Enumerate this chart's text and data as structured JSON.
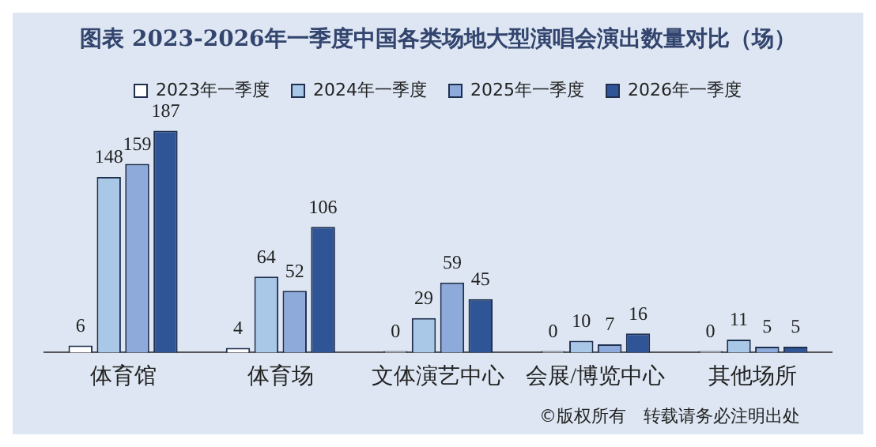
{
  "chart_data": {
    "type": "bar",
    "title": "图表 2023-2026年一季度中国各类场地大型演唱会演出数量对比（场）",
    "categories": [
      "体育馆",
      "体育场",
      "文体演艺中心",
      "会展/博览中心",
      "其他场所"
    ],
    "series": [
      {
        "name": "2023年一季度",
        "color": "#ffffff",
        "values": [
          6,
          4,
          0,
          0,
          0
        ]
      },
      {
        "name": "2024年一季度",
        "color": "#a9c8e8",
        "values": [
          148,
          64,
          29,
          10,
          11
        ]
      },
      {
        "name": "2025年一季度",
        "color": "#8eaadb",
        "values": [
          159,
          52,
          59,
          7,
          5
        ]
      },
      {
        "name": "2026年一季度",
        "color": "#2f5597",
        "values": [
          187,
          106,
          45,
          16,
          5
        ]
      }
    ],
    "data_labels": true,
    "legend": "top",
    "grid": false,
    "annotations": [
      "©版权所有　转载请务必注明出处"
    ]
  }
}
